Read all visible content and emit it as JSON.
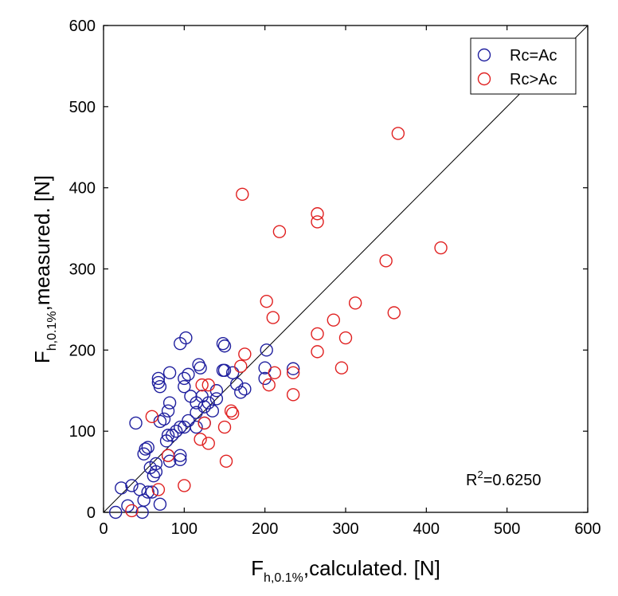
{
  "chart_data": {
    "type": "scatter",
    "title": "",
    "xlabel": {
      "main": "F",
      "sub": "h,0.1%",
      "rest": ",calculated. [N]"
    },
    "ylabel": {
      "main": "F",
      "sub": "h,0.1%",
      "rest": ",measured. [N]"
    },
    "xlim": [
      0,
      600
    ],
    "ylim": [
      0,
      600
    ],
    "xticks": [
      "0",
      "100",
      "200",
      "300",
      "400",
      "500",
      "600"
    ],
    "yticks": [
      "0",
      "100",
      "200",
      "300",
      "400",
      "500",
      "600"
    ],
    "grid": false,
    "legend_position": "top-right",
    "reference_line": {
      "from": [
        0,
        0
      ],
      "to": [
        600,
        600
      ]
    },
    "annotation": {
      "base": "R",
      "sup": "2",
      "rest": "=0.6250"
    },
    "series": [
      {
        "name": "Rc=Ac",
        "color": "#1f1f9e",
        "marker": "circle-open",
        "points": [
          [
            15,
            0
          ],
          [
            22,
            30
          ],
          [
            30,
            8
          ],
          [
            35,
            33
          ],
          [
            40,
            110
          ],
          [
            45,
            28
          ],
          [
            48,
            0
          ],
          [
            50,
            15
          ],
          [
            50,
            72
          ],
          [
            52,
            78
          ],
          [
            55,
            25
          ],
          [
            55,
            80
          ],
          [
            58,
            55
          ],
          [
            60,
            25
          ],
          [
            62,
            45
          ],
          [
            65,
            50
          ],
          [
            65,
            60
          ],
          [
            68,
            160
          ],
          [
            68,
            165
          ],
          [
            70,
            10
          ],
          [
            70,
            112
          ],
          [
            70,
            155
          ],
          [
            75,
            115
          ],
          [
            78,
            88
          ],
          [
            80,
            70
          ],
          [
            80,
            95
          ],
          [
            80,
            125
          ],
          [
            82,
            63
          ],
          [
            82,
            135
          ],
          [
            82,
            172
          ],
          [
            85,
            95
          ],
          [
            90,
            100
          ],
          [
            95,
            65
          ],
          [
            95,
            70
          ],
          [
            95,
            105
          ],
          [
            95,
            208
          ],
          [
            100,
            105
          ],
          [
            100,
            155
          ],
          [
            100,
            165
          ],
          [
            102,
            215
          ],
          [
            105,
            113
          ],
          [
            105,
            170
          ],
          [
            108,
            143
          ],
          [
            115,
            105
          ],
          [
            115,
            123
          ],
          [
            115,
            135
          ],
          [
            118,
            182
          ],
          [
            120,
            178
          ],
          [
            122,
            143
          ],
          [
            125,
            110
          ],
          [
            125,
            130
          ],
          [
            130,
            135
          ],
          [
            135,
            125
          ],
          [
            140,
            140
          ],
          [
            140,
            150
          ],
          [
            148,
            175
          ],
          [
            148,
            208
          ],
          [
            150,
            175
          ],
          [
            150,
            205
          ],
          [
            160,
            172
          ],
          [
            165,
            158
          ],
          [
            170,
            148
          ],
          [
            175,
            152
          ],
          [
            200,
            165
          ],
          [
            200,
            178
          ],
          [
            202,
            200
          ],
          [
            235,
            177
          ]
        ]
      },
      {
        "name": "Rc>Ac",
        "color": "#e02020",
        "marker": "circle-open",
        "points": [
          [
            35,
            2
          ],
          [
            60,
            118
          ],
          [
            68,
            28
          ],
          [
            80,
            70
          ],
          [
            100,
            33
          ],
          [
            120,
            90
          ],
          [
            122,
            157
          ],
          [
            125,
            110
          ],
          [
            130,
            85
          ],
          [
            130,
            157
          ],
          [
            150,
            105
          ],
          [
            152,
            63
          ],
          [
            158,
            125
          ],
          [
            160,
            122
          ],
          [
            170,
            180
          ],
          [
            172,
            392
          ],
          [
            175,
            195
          ],
          [
            202,
            260
          ],
          [
            205,
            157
          ],
          [
            210,
            240
          ],
          [
            212,
            172
          ],
          [
            218,
            346
          ],
          [
            235,
            145
          ],
          [
            235,
            172
          ],
          [
            265,
            358
          ],
          [
            265,
            368
          ],
          [
            265,
            220
          ],
          [
            265,
            198
          ],
          [
            285,
            237
          ],
          [
            295,
            178
          ],
          [
            300,
            215
          ],
          [
            312,
            258
          ],
          [
            350,
            310
          ],
          [
            360,
            246
          ],
          [
            365,
            467
          ],
          [
            418,
            326
          ]
        ]
      }
    ]
  }
}
